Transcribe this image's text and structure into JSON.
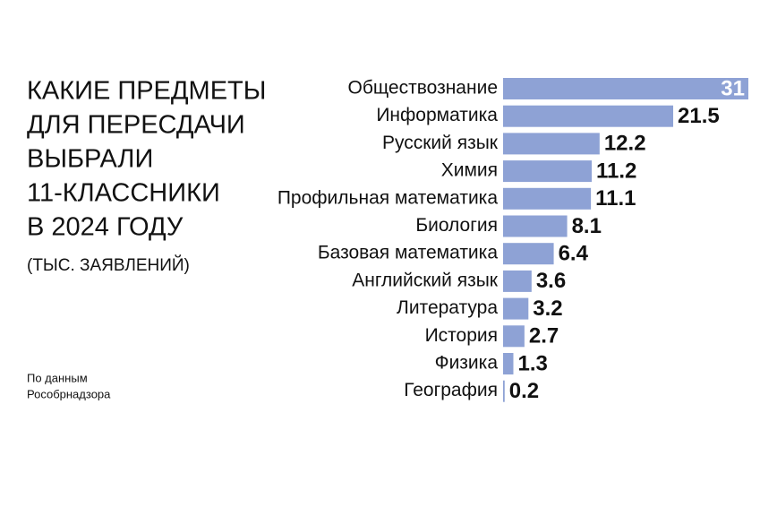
{
  "chart_data": {
    "type": "hbar",
    "title_lines": [
      "КАКИЕ ПРЕДМЕТЫ",
      "ДЛЯ ПЕРЕСДАЧИ",
      "ВЫБРАЛИ",
      "11-КЛАССНИКИ",
      "В 2024 ГОДУ"
    ],
    "subtitle": "(ТЫС. ЗАЯВЛЕНИЙ)",
    "source_lines": [
      "По данным",
      "Рособрнадзора"
    ],
    "categories": [
      "Обществознание",
      "Информатика",
      "Русский язык",
      "Химия",
      "Профильная математика",
      "Биология",
      "Базовая математика",
      "Английский язык",
      "Литература",
      "История",
      "Физика",
      "География"
    ],
    "values": [
      31,
      21.5,
      12.2,
      11.2,
      11.1,
      8.1,
      6.4,
      3.6,
      3.2,
      2.7,
      1.3,
      0.2
    ],
    "color": "#8ea2d5"
  }
}
